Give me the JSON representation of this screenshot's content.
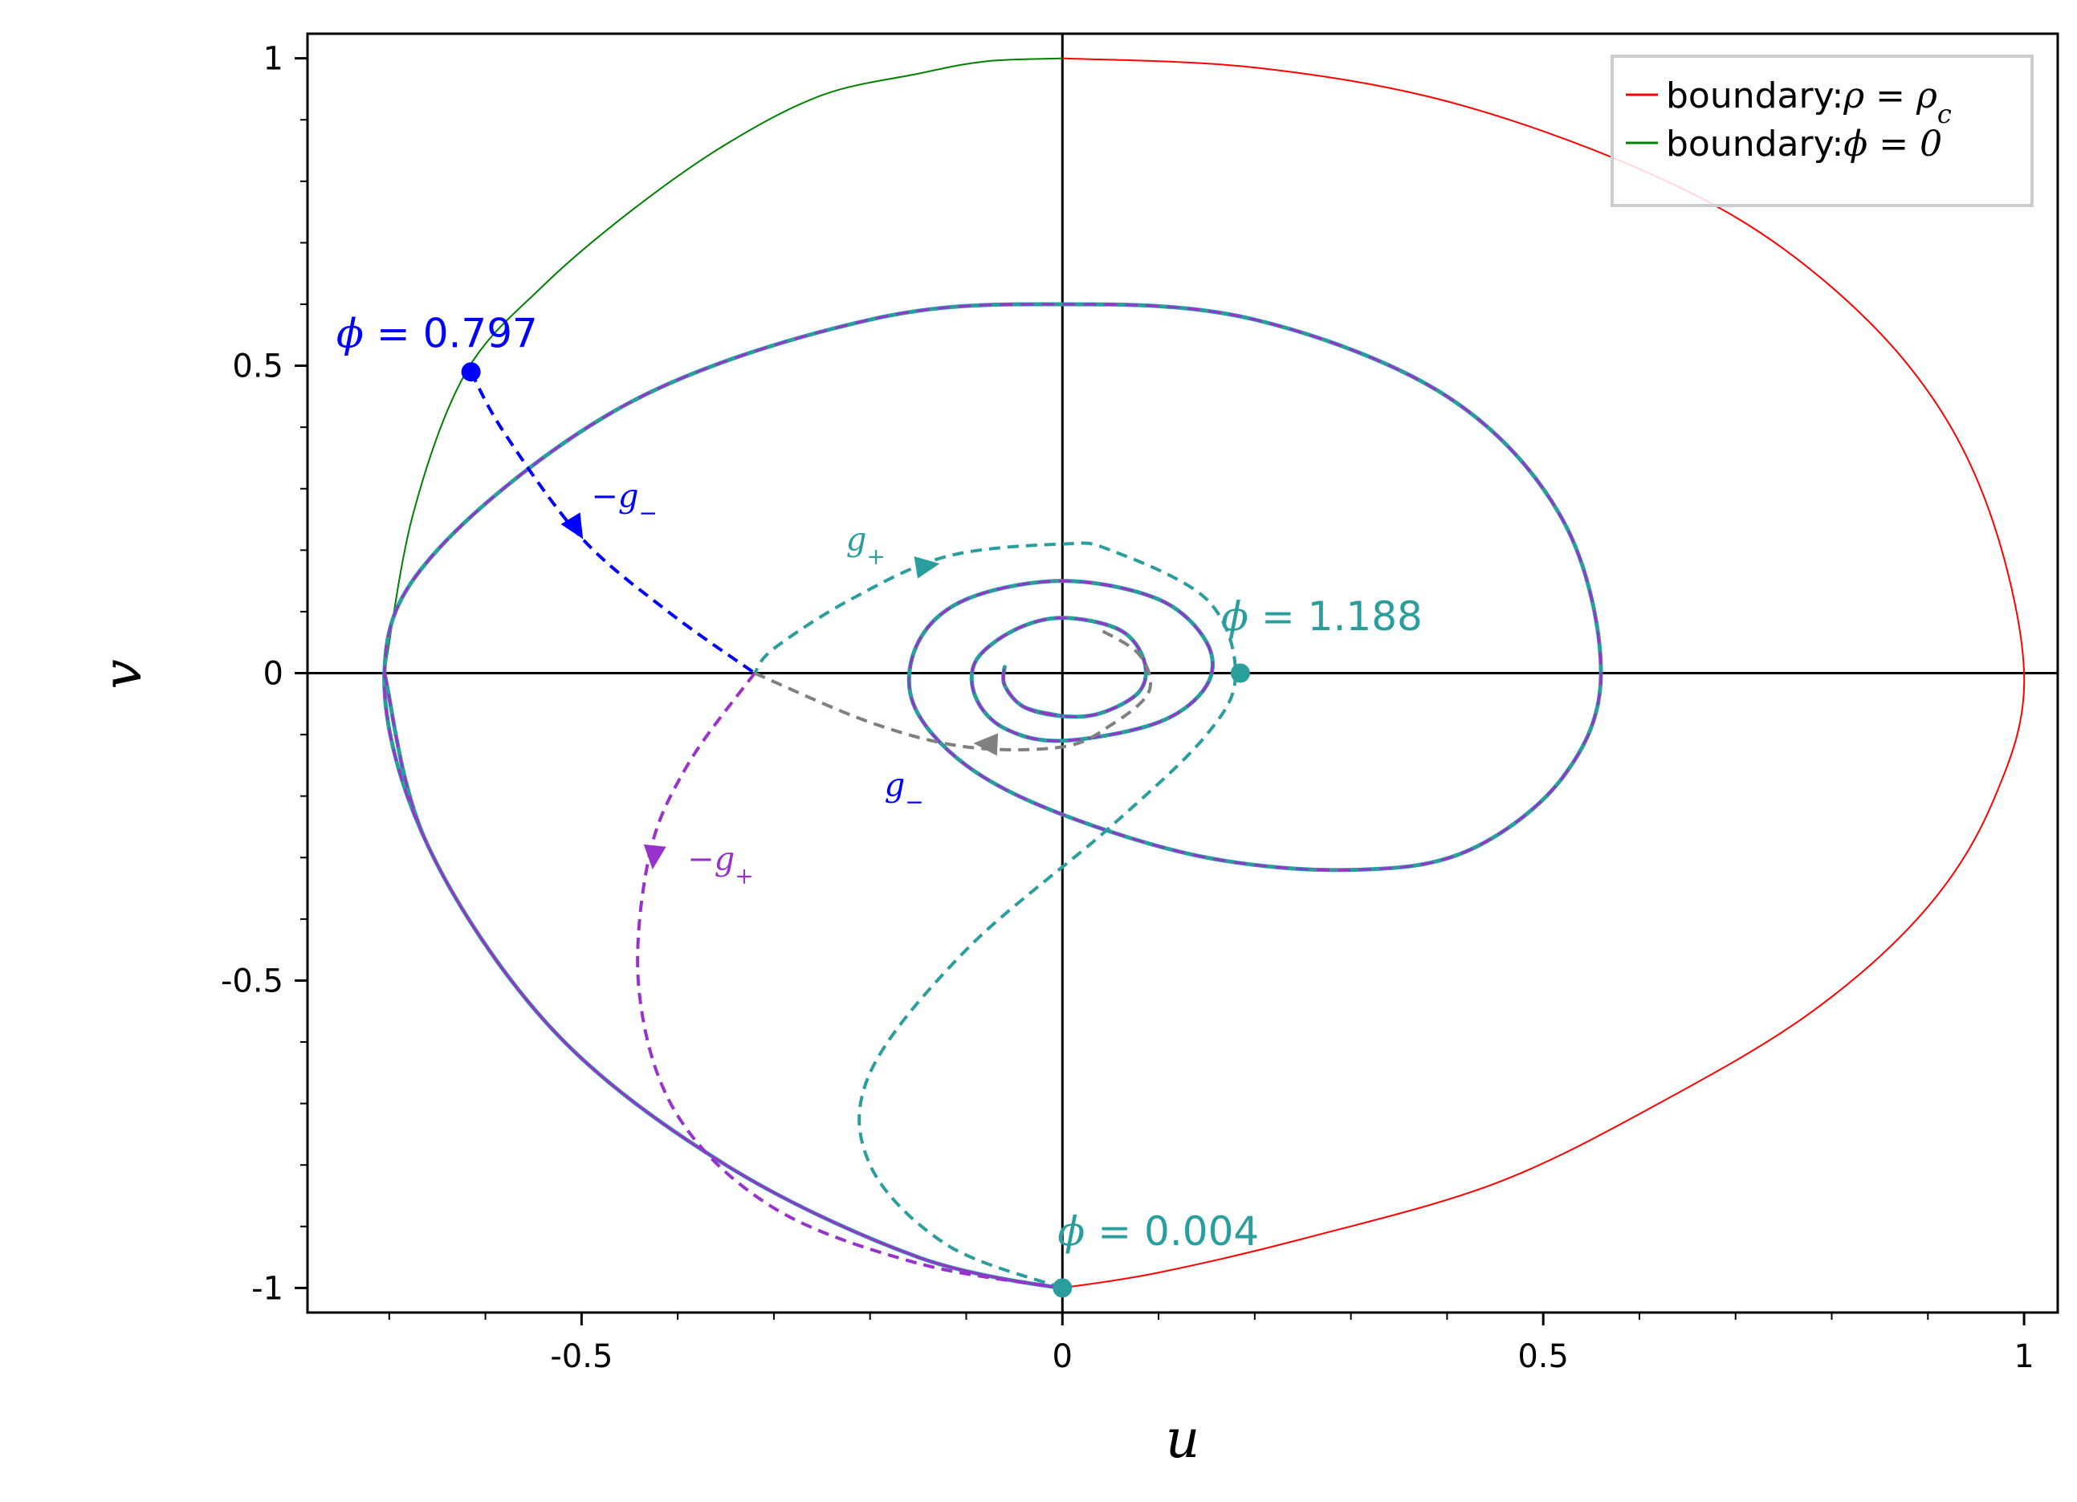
{
  "chart_data": {
    "type": "line",
    "xlabel": "u",
    "ylabel": "v",
    "xlim": [
      -0.785,
      1.035
    ],
    "ylim": [
      -1.04,
      1.04
    ],
    "xticks": [
      {
        "value": -0.5,
        "label": "-0.5"
      },
      {
        "value": 0,
        "label": "0"
      },
      {
        "value": 0.5,
        "label": "0.5"
      },
      {
        "value": 1,
        "label": "1"
      }
    ],
    "yticks": [
      {
        "value": -1,
        "label": "-1"
      },
      {
        "value": -0.5,
        "label": "-0.5"
      },
      {
        "value": 0,
        "label": "0"
      },
      {
        "value": 0.5,
        "label": "0.5"
      },
      {
        "value": 1,
        "label": "1"
      }
    ],
    "grid": false,
    "legend": {
      "position": "top-right",
      "entries": [
        {
          "prefix": "boundary:",
          "math_html": "ρ = ρ<tspan baseline-shift='sub' font-size='32'>c</tspan>",
          "color": "#ff0000"
        },
        {
          "prefix": "boundary:",
          "math_html": "ϕ = 0",
          "color": "#008000"
        }
      ]
    },
    "series": [
      {
        "key": "red",
        "color": "#ff0000",
        "dash": false,
        "width": 2,
        "points": [
          [
            0,
            1
          ],
          [
            0.2,
            0.985
          ],
          [
            0.4,
            0.93
          ],
          [
            0.6,
            0.82
          ],
          [
            0.75,
            0.69
          ],
          [
            0.88,
            0.5
          ],
          [
            0.96,
            0.28
          ],
          [
            1,
            0
          ],
          [
            0.97,
            -0.2
          ],
          [
            0.9,
            -0.38
          ],
          [
            0.78,
            -0.55
          ],
          [
            0.62,
            -0.7
          ],
          [
            0.45,
            -0.83
          ],
          [
            0.25,
            -0.92
          ],
          [
            0.1,
            -0.975
          ],
          [
            0,
            -1
          ]
        ]
      },
      {
        "key": "green",
        "color": "#008000",
        "dash": false,
        "width": 2,
        "points": [
          [
            0,
            1
          ],
          [
            -0.08,
            0.995
          ],
          [
            -0.15,
            0.975
          ],
          [
            -0.25,
            0.94
          ],
          [
            -0.35,
            0.86
          ],
          [
            -0.45,
            0.75
          ],
          [
            -0.54,
            0.63
          ],
          [
            -0.62,
            0.49
          ],
          [
            -0.675,
            0.26
          ],
          [
            -0.705,
            0
          ]
        ]
      },
      {
        "key": "spiral",
        "color": "#2a9d9d",
        "dash": false,
        "width": 5,
        "overlay": "#9932cc",
        "points": [
          [
            -0.705,
            0
          ],
          [
            -0.66,
            -0.28
          ],
          [
            -0.53,
            -0.58
          ],
          [
            -0.35,
            -0.8
          ],
          [
            -0.15,
            -0.95
          ],
          [
            0,
            -1
          ],
          [
            -0.15,
            -0.95
          ],
          [
            -0.35,
            -0.8
          ],
          [
            -0.53,
            -0.58
          ],
          [
            -0.66,
            -0.28
          ],
          [
            -0.705,
            0
          ],
          [
            -0.65,
            0.2
          ],
          [
            -0.45,
            0.44
          ],
          [
            -0.2,
            0.575
          ],
          [
            0,
            0.6
          ],
          [
            0.2,
            0.575
          ],
          [
            0.4,
            0.45
          ],
          [
            0.52,
            0.25
          ],
          [
            0.56,
            0
          ],
          [
            0.52,
            -0.17
          ],
          [
            0.42,
            -0.29
          ],
          [
            0.3,
            -0.32
          ],
          [
            0.15,
            -0.3
          ],
          [
            0,
            -0.23
          ],
          [
            -0.1,
            -0.15
          ],
          [
            -0.155,
            -0.05
          ],
          [
            -0.15,
            0.05
          ],
          [
            -0.1,
            0.12
          ],
          [
            0,
            0.15
          ],
          [
            0.1,
            0.12
          ],
          [
            0.15,
            0.05
          ],
          [
            0.15,
            -0.02
          ],
          [
            0.1,
            -0.08
          ],
          [
            0,
            -0.11
          ],
          [
            -0.06,
            -0.09
          ],
          [
            -0.09,
            -0.04
          ],
          [
            -0.09,
            0.02
          ],
          [
            -0.05,
            0.07
          ],
          [
            0,
            0.09
          ],
          [
            0.06,
            0.07
          ],
          [
            0.085,
            0.02
          ],
          [
            0.08,
            -0.03
          ],
          [
            0.04,
            -0.065
          ],
          [
            0,
            -0.07
          ],
          [
            -0.04,
            -0.055
          ],
          [
            -0.06,
            -0.02
          ],
          [
            -0.06,
            0.01
          ],
          [
            -0.06,
            -0.02
          ],
          [
            -0.04,
            -0.055
          ],
          [
            0,
            -0.07
          ]
        ]
      },
      {
        "key": "blue",
        "color": "#0000ff",
        "dash": true,
        "width": 4,
        "points": [
          [
            -0.615,
            0.49
          ],
          [
            -0.58,
            0.39
          ],
          [
            -0.5,
            0.22
          ],
          [
            -0.41,
            0.1
          ],
          [
            -0.32,
            0
          ]
        ]
      },
      {
        "key": "teal",
        "color": "#2a9d9d",
        "dash": true,
        "width": 4,
        "points": [
          [
            0,
            -1
          ],
          [
            -0.12,
            -0.93
          ],
          [
            -0.2,
            -0.8
          ],
          [
            -0.2,
            -0.65
          ],
          [
            -0.1,
            -0.45
          ],
          [
            0.05,
            -0.25
          ],
          [
            0.15,
            -0.1
          ],
          [
            0.18,
            0
          ],
          [
            0.15,
            0.12
          ],
          [
            0.05,
            0.2
          ],
          [
            0,
            0.21
          ],
          [
            -0.12,
            0.19
          ],
          [
            -0.22,
            0.12
          ],
          [
            -0.3,
            0.04
          ],
          [
            -0.32,
            0
          ]
        ]
      },
      {
        "key": "purple",
        "color": "#9932cc",
        "dash": true,
        "width": 4,
        "points": [
          [
            -0.32,
            0
          ],
          [
            -0.39,
            -0.15
          ],
          [
            -0.43,
            -0.3
          ],
          [
            -0.44,
            -0.52
          ],
          [
            -0.4,
            -0.72
          ],
          [
            -0.3,
            -0.87
          ],
          [
            -0.15,
            -0.96
          ],
          [
            0,
            -1
          ]
        ]
      },
      {
        "key": "gray",
        "color": "#808080",
        "dash": true,
        "width": 4,
        "points": [
          [
            -0.32,
            0
          ],
          [
            -0.2,
            -0.08
          ],
          [
            -0.1,
            -0.12
          ],
          [
            0,
            -0.12
          ],
          [
            0.05,
            -0.085
          ],
          [
            0.09,
            -0.03
          ],
          [
            0.08,
            0.03
          ],
          [
            0.04,
            0.07
          ]
        ]
      }
    ],
    "markers": [
      {
        "key": "m-blue",
        "x": -0.615,
        "y": 0.49,
        "color": "#0000ff"
      },
      {
        "key": "m-teal-right",
        "x": 0.185,
        "y": 0,
        "color": "#2a9d9d"
      },
      {
        "key": "m-teal-bottom",
        "x": 0,
        "y": -1,
        "color": "#2a9d9d"
      }
    ],
    "arrows": [
      {
        "key": "arrow-blue",
        "x": -0.505,
        "y": 0.235,
        "dx": 0.5,
        "dy": -0.82,
        "color": "#0000ff"
      },
      {
        "key": "arrow-teal",
        "x": -0.14,
        "y": 0.175,
        "dx": 0.99,
        "dy": 0.16,
        "color": "#2a9d9d"
      },
      {
        "key": "arrow-purple",
        "x": -0.425,
        "y": -0.3,
        "dx": -0.1,
        "dy": -0.99,
        "color": "#9932cc"
      },
      {
        "key": "arrow-gray",
        "x": -0.08,
        "y": -0.115,
        "dx": -0.99,
        "dy": 0.05,
        "color": "#808080"
      }
    ],
    "annotations": [
      {
        "key": "ann-phi-0797",
        "x": -0.755,
        "y": 0.53,
        "math": "ϕ = ",
        "value": "0.797",
        "color": "#0000ff"
      },
      {
        "key": "ann-phi-1188",
        "x": 0.165,
        "y": 0.07,
        "math": "ϕ = ",
        "value": "1.188",
        "color": "#2a9d9d"
      },
      {
        "key": "ann-phi-0004",
        "x": -0.005,
        "y": -0.93,
        "math": "ϕ = ",
        "value": "0.004",
        "color": "#2a9d9d"
      }
    ],
    "curve_labels": [
      {
        "key": "label-neg-g-minus",
        "x": -0.49,
        "y": 0.27,
        "html": "−g<tspan baseline-shift='sub' font-size='28'>−</tspan>",
        "color": "#0000ff"
      },
      {
        "key": "label-g-plus",
        "x": -0.225,
        "y": 0.2,
        "html": "g<tspan baseline-shift='sub' font-size='28'>+</tspan>",
        "color": "#2a9d9d"
      },
      {
        "key": "label-g-minus",
        "x": -0.185,
        "y": -0.2,
        "html": "g<tspan baseline-shift='sub' font-size='28'>−</tspan>",
        "color": "#0000ff"
      },
      {
        "key": "label-neg-g-plus",
        "x": -0.39,
        "y": -0.32,
        "html": "−g<tspan baseline-shift='sub' font-size='28'>+</tspan>",
        "color": "#9932cc"
      }
    ]
  }
}
